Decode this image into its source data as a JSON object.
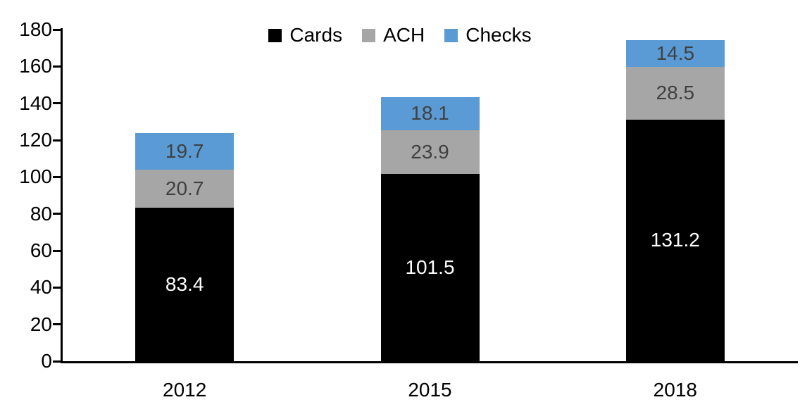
{
  "chart_data": {
    "type": "bar",
    "stacked": true,
    "title": "",
    "xlabel": "",
    "ylabel": "",
    "categories": [
      "2012",
      "2015",
      "2018"
    ],
    "series": [
      {
        "name": "Cards",
        "color": "#000000",
        "label_color": "#ffffff",
        "values": [
          83.4,
          101.5,
          131.2
        ]
      },
      {
        "name": "ACH",
        "color": "#a6a6a6",
        "label_color": "#404040",
        "values": [
          20.7,
          23.9,
          28.5
        ]
      },
      {
        "name": "Checks",
        "color": "#5b9bd5",
        "label_color": "#404040",
        "values": [
          19.7,
          18.1,
          14.5
        ]
      }
    ],
    "totals": [
      123.8,
      143.5,
      174.2
    ],
    "ylim": [
      0,
      180
    ],
    "yticks": [
      0,
      20,
      40,
      60,
      80,
      100,
      120,
      140,
      160,
      180
    ],
    "grid": false,
    "legend_position": "top-center",
    "axis_color": "#000000",
    "background": "#ffffff"
  }
}
